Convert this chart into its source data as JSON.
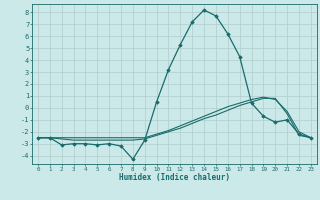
{
  "title": "",
  "xlabel": "Humidex (Indice chaleur)",
  "ylabel": "",
  "background_color": "#cce9e9",
  "grid_color": "#b0cccc",
  "line_color": "#1a6b6b",
  "xlim": [
    -0.5,
    23.5
  ],
  "ylim": [
    -4.7,
    8.7
  ],
  "xticks": [
    0,
    1,
    2,
    3,
    4,
    5,
    6,
    7,
    8,
    9,
    10,
    11,
    12,
    13,
    14,
    15,
    16,
    17,
    18,
    19,
    20,
    21,
    22,
    23
  ],
  "yticks": [
    -4,
    -3,
    -2,
    -1,
    0,
    1,
    2,
    3,
    4,
    5,
    6,
    7,
    8
  ],
  "series": [
    {
      "x": [
        0,
        1,
        2,
        3,
        4,
        5,
        6,
        7,
        8,
        9,
        10,
        11,
        12,
        13,
        14,
        15,
        16,
        17,
        18,
        19,
        20,
        21,
        22,
        23
      ],
      "y": [
        -2.5,
        -2.5,
        -3.1,
        -3.0,
        -3.0,
        -3.1,
        -3.0,
        -3.2,
        -4.3,
        -2.7,
        0.5,
        3.2,
        5.3,
        7.2,
        8.2,
        7.7,
        6.2,
        4.3,
        0.4,
        -0.7,
        -1.2,
        -1.0,
        -2.2,
        -2.5
      ],
      "marker": "D",
      "markersize": 1.8,
      "linewidth": 0.9
    },
    {
      "x": [
        0,
        1,
        2,
        3,
        4,
        5,
        6,
        7,
        8,
        9,
        10,
        11,
        12,
        13,
        14,
        15,
        16,
        17,
        18,
        19,
        20,
        21,
        22,
        23
      ],
      "y": [
        -2.5,
        -2.5,
        -2.6,
        -2.7,
        -2.7,
        -2.7,
        -2.7,
        -2.7,
        -2.7,
        -2.6,
        -2.3,
        -2.0,
        -1.7,
        -1.3,
        -0.9,
        -0.6,
        -0.2,
        0.2,
        0.5,
        0.8,
        0.8,
        -0.5,
        -2.3,
        -2.5
      ],
      "marker": null,
      "linewidth": 0.8
    },
    {
      "x": [
        0,
        1,
        2,
        3,
        4,
        5,
        6,
        7,
        8,
        9,
        10,
        11,
        12,
        13,
        14,
        15,
        16,
        17,
        18,
        19,
        20,
        21,
        22,
        23
      ],
      "y": [
        -2.5,
        -2.5,
        -2.5,
        -2.5,
        -2.5,
        -2.5,
        -2.5,
        -2.5,
        -2.5,
        -2.5,
        -2.2,
        -1.9,
        -1.5,
        -1.1,
        -0.7,
        -0.3,
        0.1,
        0.4,
        0.7,
        0.9,
        0.7,
        -0.3,
        -2.0,
        -2.5
      ],
      "marker": null,
      "linewidth": 0.8
    }
  ]
}
